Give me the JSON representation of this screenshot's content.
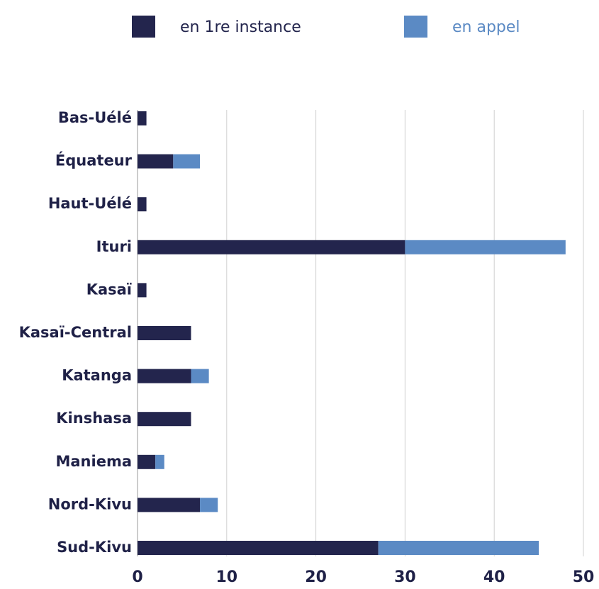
{
  "chart_data": {
    "type": "stacked_barh",
    "categories": [
      "Bas-Uélé",
      "Équateur",
      "Haut-Uélé",
      "Ituri",
      "Kasaï",
      "Kasaï-Central",
      "Katanga",
      "Kinshasa",
      "Maniema",
      "Nord-Kivu",
      "Sud-Kivu"
    ],
    "series": [
      {
        "name": "en 1re instance",
        "color": "#23254d",
        "values": [
          1,
          4,
          1,
          30,
          1,
          6,
          6,
          6,
          2,
          7,
          27
        ]
      },
      {
        "name": "en appel",
        "color": "#5b8ac4",
        "values": [
          0,
          3,
          0,
          18,
          0,
          0,
          2,
          0,
          1,
          2,
          18
        ]
      }
    ],
    "xlim": [
      0,
      50
    ],
    "xticks": [
      0,
      10,
      20,
      30,
      40,
      50
    ],
    "grid": true,
    "legend": "top"
  }
}
